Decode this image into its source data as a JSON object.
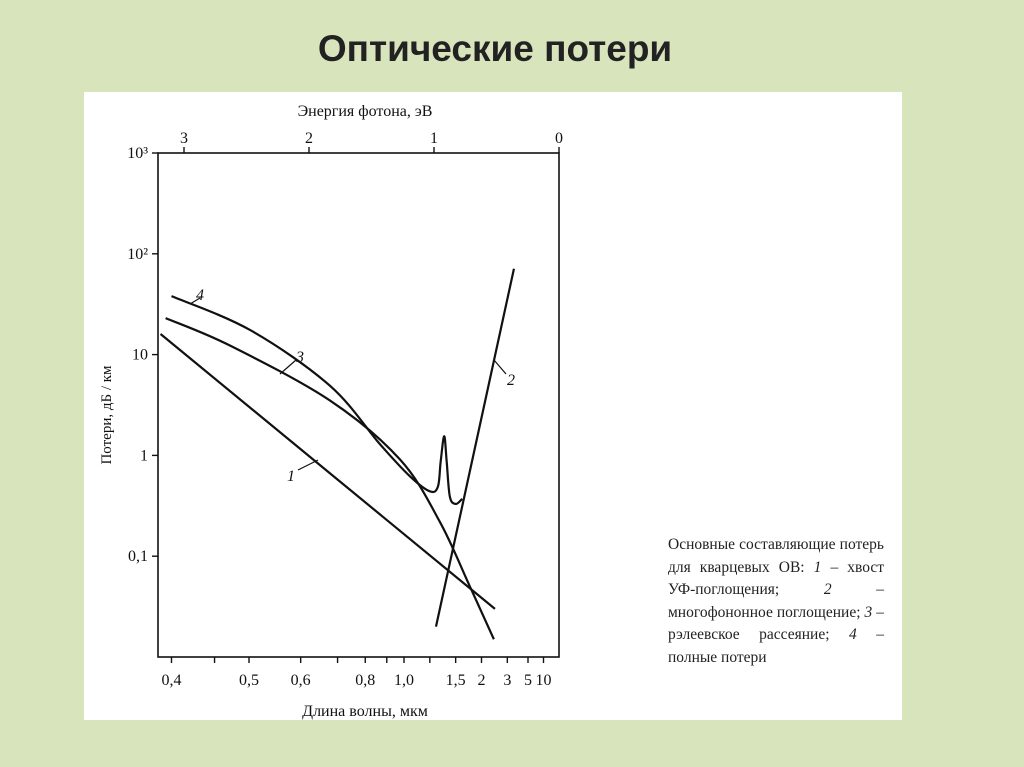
{
  "slide": {
    "title": "Оптические потери"
  },
  "caption": {
    "intro": "Основные составляющие потерь для кварцевых ОВ:",
    "items": [
      {
        "num": "1",
        "text": " – хвост УФ-поглощения;"
      },
      {
        "num": "2",
        "text": " – многофононное поглощение;"
      },
      {
        "num": "3",
        "text": " – рэлеевское рассеяние;"
      },
      {
        "num": "4",
        "text": " – полные потери"
      }
    ]
  },
  "chart_data": {
    "type": "line",
    "xlabel": "Длина волны, мкм",
    "x2label": "Энергия фотона, эВ",
    "ylabel": "Потери, дБ / км",
    "yscale": "log",
    "ylim": [
      0.01,
      1000
    ],
    "x2lim": [
      3.1,
      0
    ],
    "x_ticks": [
      "0,4",
      "0,5",
      "0,6",
      "0,8",
      "1,0",
      "1,5",
      "2",
      "3",
      "5",
      "10"
    ],
    "x_tick_values": [
      0.4,
      0.5,
      0.6,
      0.8,
      1.0,
      1.5,
      2,
      3,
      5,
      10
    ],
    "x_minor_tick_values": [
      0.45,
      0.7,
      0.9,
      1.2
    ],
    "x2_ticks": [
      "3",
      "2",
      "1",
      "0"
    ],
    "x2_tick_values": [
      3,
      2,
      1,
      0
    ],
    "y_ticks": [
      "10³",
      "10²",
      "10",
      "1",
      "0,1"
    ],
    "y_tick_values": [
      1000,
      100,
      10,
      1,
      0.1
    ],
    "grid": false,
    "series": [
      {
        "name": "1",
        "x": [
          0.389,
          2.42
        ],
        "y": [
          16,
          0.03
        ]
      },
      {
        "name": "2",
        "x": [
          1.26,
          3.44
        ],
        "y": [
          0.02,
          71
        ]
      },
      {
        "name": "3",
        "x": [
          0.394,
          0.471,
          0.677,
          0.975,
          1.3,
          1.74,
          2.38
        ],
        "y": [
          23,
          12.3,
          3.5,
          0.91,
          0.22,
          0.05,
          0.015
        ]
      },
      {
        "name": "4",
        "x": [
          0.4,
          0.502,
          0.677,
          0.866,
          1.04,
          1.2,
          1.28,
          1.31,
          1.35,
          1.38,
          1.42,
          1.5,
          1.6
        ],
        "y": [
          38,
          17.5,
          4.9,
          1.29,
          0.62,
          0.44,
          0.49,
          0.87,
          1.55,
          0.87,
          0.39,
          0.33,
          0.37
        ]
      }
    ]
  }
}
